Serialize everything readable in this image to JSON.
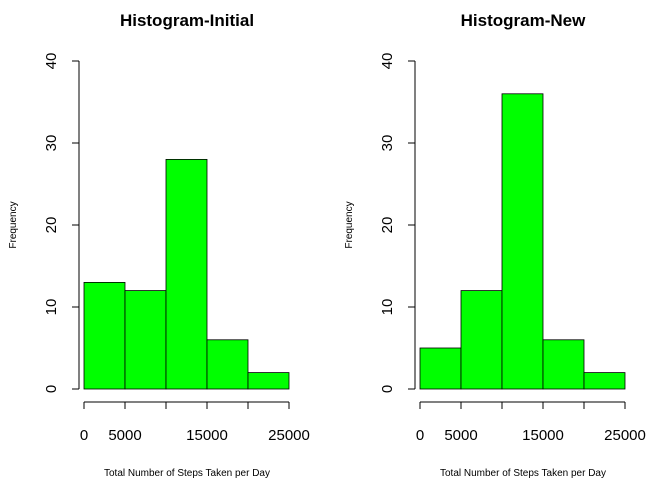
{
  "chart_data": [
    {
      "type": "bar",
      "title": "Histogram-Initial",
      "xlabel": "Total Number of Steps Taken per Day",
      "ylabel": "Frequency",
      "bins": [
        [
          0,
          5000
        ],
        [
          5000,
          10000
        ],
        [
          10000,
          15000
        ],
        [
          15000,
          20000
        ],
        [
          20000,
          25000
        ]
      ],
      "values": [
        13,
        12,
        28,
        6,
        2
      ],
      "xlim": [
        0,
        25000
      ],
      "ylim": [
        0,
        40
      ],
      "x_ticks": [
        0,
        5000,
        15000,
        25000
      ],
      "x_tick_marks": [
        0,
        5000,
        10000,
        15000,
        20000,
        25000
      ],
      "y_ticks": [
        0,
        10,
        20,
        30,
        40
      ],
      "bar_color": "#00ff00",
      "grid": false
    },
    {
      "type": "bar",
      "title": "Histogram-New",
      "xlabel": "Total Number of Steps Taken per Day",
      "ylabel": "Frequency",
      "bins": [
        [
          0,
          5000
        ],
        [
          5000,
          10000
        ],
        [
          10000,
          15000
        ],
        [
          15000,
          20000
        ],
        [
          20000,
          25000
        ]
      ],
      "values": [
        5,
        12,
        36,
        6,
        2
      ],
      "xlim": [
        0,
        25000
      ],
      "ylim": [
        0,
        40
      ],
      "x_ticks": [
        0,
        5000,
        15000,
        25000
      ],
      "x_tick_marks": [
        0,
        5000,
        10000,
        15000,
        20000,
        25000
      ],
      "y_ticks": [
        0,
        10,
        20,
        30,
        40
      ],
      "bar_color": "#00ff00",
      "grid": false
    }
  ]
}
